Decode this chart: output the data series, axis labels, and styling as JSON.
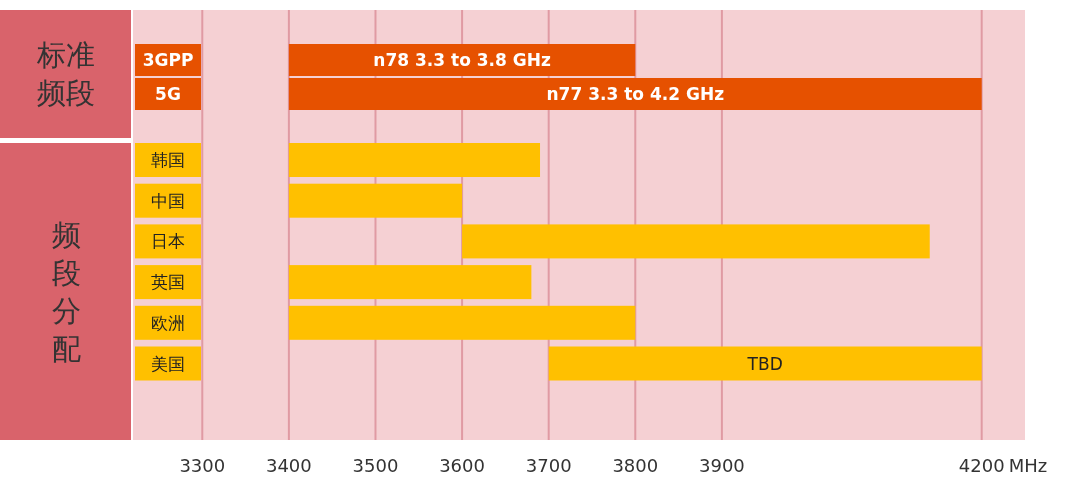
{
  "chart_data": {
    "type": "bar",
    "orientation": "horizontal",
    "xlabel": "MHz",
    "categories": [
      "3GPP",
      "5G",
      "韩国",
      "中国",
      "日本",
      "英国",
      "欧洲",
      "美国"
    ],
    "base": [
      3400,
      3400,
      3400,
      3400,
      3600,
      3400,
      3400,
      3700
    ],
    "values": [
      400,
      800,
      290,
      200,
      540,
      280,
      400,
      500
    ],
    "colors": [
      "#e65100",
      "#e65100",
      "#ffc000",
      "#ffc000",
      "#ffc000",
      "#ffc000",
      "#ffc000",
      "#ffc000"
    ],
    "value_labels": [
      "n78 3.3 to 3.8 GHz",
      "n77 3.3 to 4.2 GHz",
      null,
      null,
      null,
      null,
      null,
      "TBD"
    ],
    "annotations": [
      "标准频段",
      "频段分配"
    ],
    "xlim": [
      3220,
      4250
    ],
    "xticks": [
      3300,
      3400,
      3500,
      3600,
      3700,
      3800,
      3900,
      4200
    ],
    "grid": "x"
  }
}
